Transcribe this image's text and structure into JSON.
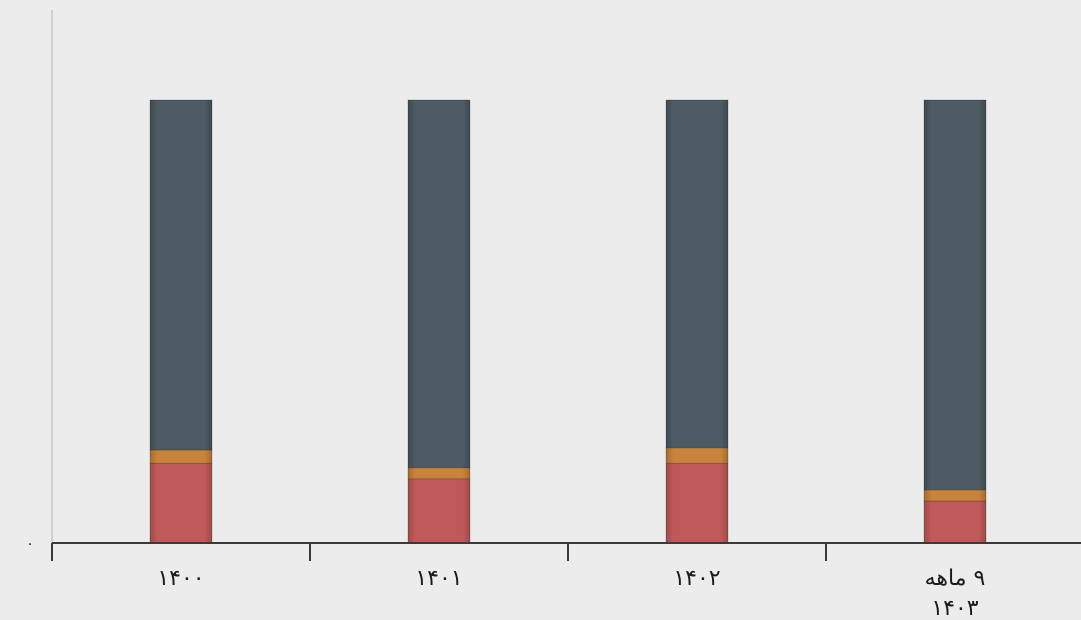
{
  "chart_data": {
    "type": "bar",
    "stacked": true,
    "normalized_percent": true,
    "categories": [
      [
        "۱۴۰۰"
      ],
      [
        "۱۴۰۱"
      ],
      [
        "۱۴۰۲"
      ],
      [
        "۹ ماهه",
        "۱۴۰۳"
      ]
    ],
    "series": [
      {
        "color": "#c05a5a",
        "values": [
          18,
          14.5,
          18,
          9.5
        ]
      },
      {
        "color": "#c9833a",
        "values": [
          3,
          2.5,
          3.5,
          2.5
        ]
      },
      {
        "color": "#4d5b64",
        "values": [
          79,
          83,
          78.5,
          88
        ]
      }
    ],
    "y_tick_labels": [
      "۰"
    ],
    "ylim": [
      0,
      100
    ],
    "grid": false,
    "title": "",
    "xlabel": "",
    "ylabel": ""
  }
}
